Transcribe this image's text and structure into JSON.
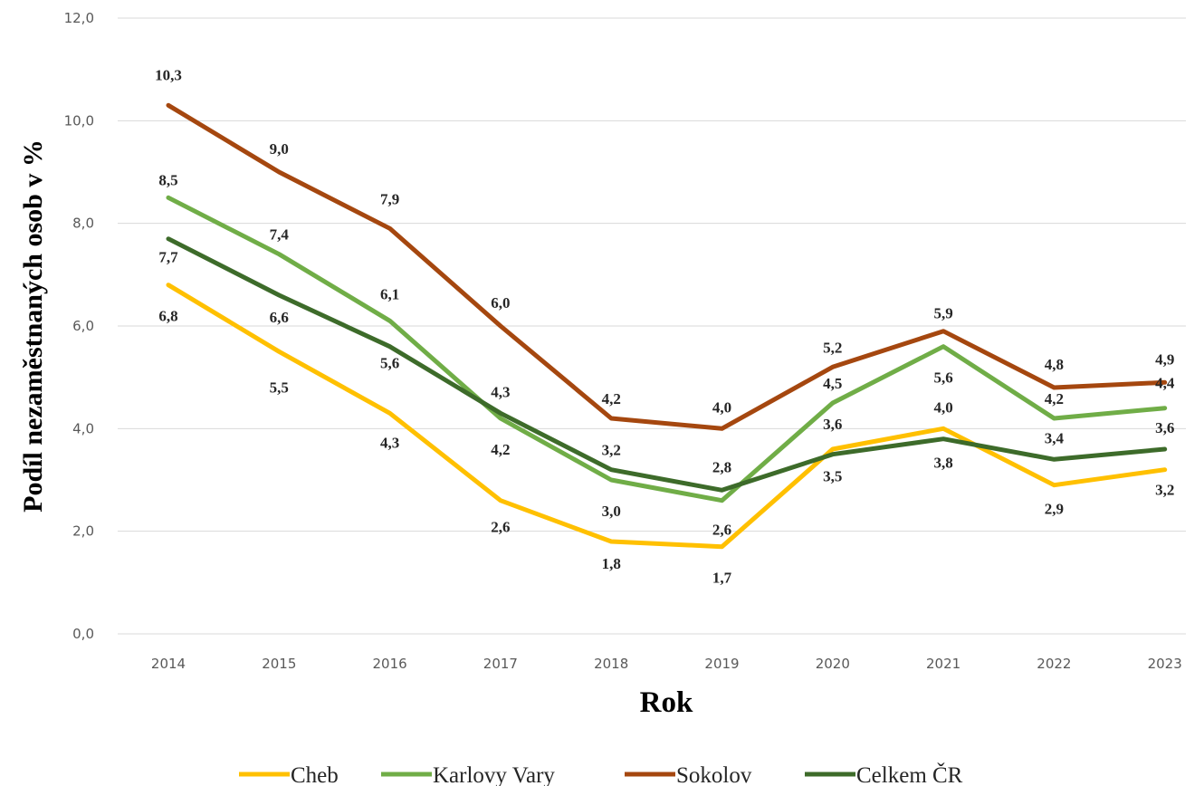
{
  "chart_data": {
    "type": "line",
    "title": "",
    "xlabel": "Rok",
    "ylabel": "Podíl nezaměstnaných osob v %",
    "ylim": [
      0,
      12
    ],
    "yticks": [
      "0,0",
      "2,0",
      "4,0",
      "6,0",
      "8,0",
      "10,0",
      "12,0"
    ],
    "x": [
      "2014",
      "2015",
      "2016",
      "2017",
      "2018",
      "2019",
      "2020",
      "2021",
      "2022",
      "2023"
    ],
    "grid": "horizontal",
    "legend_position": "bottom",
    "series": [
      {
        "name": "Cheb",
        "color": "#ffc000",
        "values": [
          6.8,
          5.5,
          4.3,
          2.6,
          1.8,
          1.7,
          3.6,
          4.0,
          2.9,
          3.2
        ],
        "labels": [
          "6,8",
          "5,5",
          "4,3",
          "2,6",
          "1,8",
          "1,7",
          "3,6",
          "4,0",
          "2,9",
          "3,2"
        ]
      },
      {
        "name": "Karlovy Vary",
        "color": "#70ad47",
        "values": [
          8.5,
          7.4,
          6.1,
          4.2,
          3.0,
          2.6,
          4.5,
          5.6,
          4.2,
          4.4
        ],
        "labels": [
          "8,5",
          "7,4",
          "6,1",
          "4,2",
          "3,0",
          "2,6",
          "4,5",
          "5,6",
          "4,2",
          "4,4"
        ]
      },
      {
        "name": "Sokolov",
        "color": "#a5470f",
        "values": [
          10.3,
          9.0,
          7.9,
          6.0,
          4.2,
          4.0,
          5.2,
          5.9,
          4.8,
          4.9
        ],
        "labels": [
          "10,3",
          "9,0",
          "7,9",
          "6,0",
          "4,2",
          "4,0",
          "5,2",
          "5,9",
          "4,8",
          "4,9"
        ]
      },
      {
        "name": "Celkem ČR",
        "color": "#3d6b2a",
        "values": [
          7.7,
          6.6,
          5.6,
          4.3,
          3.2,
          2.8,
          3.5,
          3.8,
          3.4,
          3.6
        ],
        "labels": [
          "7,7",
          "6,6",
          "5,6",
          "4,3",
          "3,2",
          "2,8",
          "3,5",
          "3,8",
          "3,4",
          "3,6"
        ]
      }
    ]
  }
}
